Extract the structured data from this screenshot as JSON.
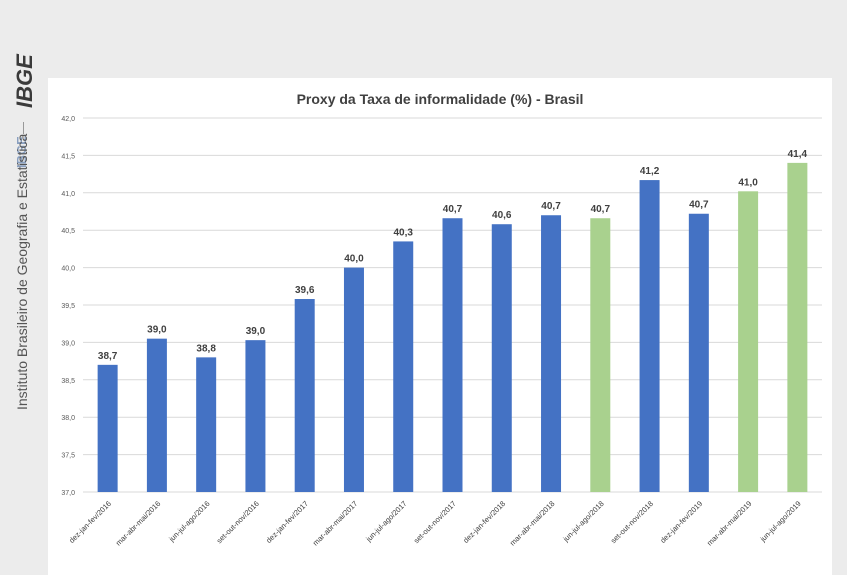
{
  "sidebar": {
    "logo_text": "IBGE",
    "ibge_label": "IBGE",
    "institute_name": "Instituto Brasileiro de Geografia e Estatística"
  },
  "chart_data": {
    "type": "bar",
    "title": "Proxy da Taxa de informalidade (%) - Brasil",
    "xlabel": "",
    "ylabel": "",
    "ylim": [
      37.0,
      42.0
    ],
    "yticks": [
      37.0,
      37.5,
      38.0,
      38.5,
      39.0,
      39.5,
      40.0,
      40.5,
      41.0,
      41.5,
      42.0
    ],
    "ytick_labels": [
      "37,0",
      "37,5",
      "38,0",
      "38,5",
      "39,0",
      "39,5",
      "40,0",
      "40,5",
      "41,0",
      "41,5",
      "42,0"
    ],
    "grid": true,
    "categories": [
      "dez-jan-fev/2016",
      "mar-abr-mai/2016",
      "jun-jul-ago/2016",
      "set-out-nov/2016",
      "dez-jan-fev/2017",
      "mar-abr-mai/2017",
      "jun-jul-ago/2017",
      "set-out-nov/2017",
      "dez-jan-fev/2018",
      "mar-abr-mai/2018",
      "jun-jul-ago/2018",
      "set-out-nov/2018",
      "dez-jan-fev/2019",
      "mar-abr-mai/2019",
      "jun-jul-ago/2019"
    ],
    "values": [
      38.7,
      39.05,
      38.8,
      39.03,
      39.58,
      40.0,
      40.35,
      40.66,
      40.58,
      40.7,
      40.66,
      41.17,
      40.72,
      41.02,
      41.4
    ],
    "data_labels": [
      "38,7",
      "39,0",
      "38,8",
      "39,0",
      "39,6",
      "40,0",
      "40,3",
      "40,7",
      "40,6",
      "40,7",
      "40,7",
      "41,2",
      "40,7",
      "41,0",
      "41,4"
    ],
    "bar_colors": [
      "#4472c4",
      "#4472c4",
      "#4472c4",
      "#4472c4",
      "#4472c4",
      "#4472c4",
      "#4472c4",
      "#4472c4",
      "#4472c4",
      "#4472c4",
      "#a9d18e",
      "#4472c4",
      "#4472c4",
      "#a9d18e",
      "#a9d18e"
    ],
    "colors": {
      "blue": "#4472c4",
      "green": "#a9d18e",
      "grid": "#d9d9d9",
      "label": "#404040"
    }
  }
}
